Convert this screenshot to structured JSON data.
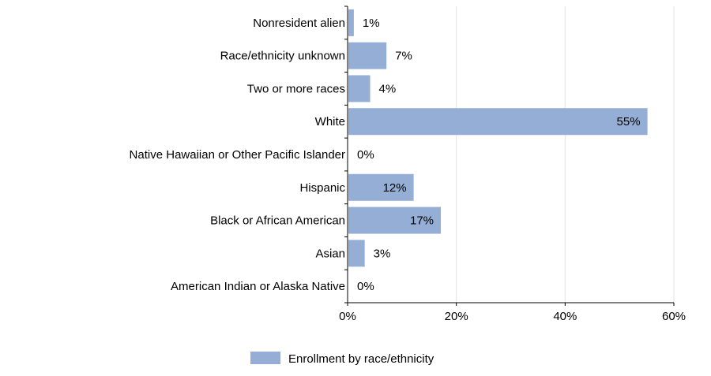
{
  "chart_data": {
    "type": "bar",
    "orientation": "horizontal",
    "categories": [
      "Nonresident alien",
      "Race/ethnicity unknown",
      "Two or more races",
      "White",
      "Native Hawaiian or Other Pacific Islander",
      "Hispanic",
      "Black or African American",
      "Asian",
      "American Indian or Alaska Native"
    ],
    "values": [
      1,
      7,
      4,
      55,
      0,
      12,
      17,
      3,
      0
    ],
    "value_labels": [
      "1%",
      "7%",
      "4%",
      "55%",
      "0%",
      "12%",
      "17%",
      "3%",
      "0%"
    ],
    "series": [
      {
        "name": "Enrollment by race/ethnicity",
        "color": "#94aed5"
      }
    ],
    "xlim": [
      0,
      60
    ],
    "xticks": [
      0,
      20,
      40,
      60
    ],
    "xtick_labels": [
      "0%",
      "20%",
      "40%",
      "60%"
    ],
    "grid": "vertical",
    "legend": "bottom-center"
  }
}
